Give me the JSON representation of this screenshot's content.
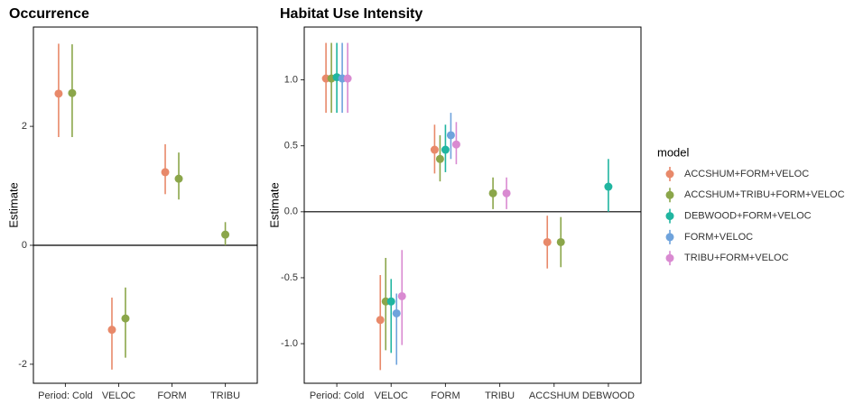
{
  "chart_data": [
    {
      "type": "pointrange",
      "title": "Occurrence",
      "y_label": "Estimate",
      "categories": [
        "Period: Cold",
        "VELOC",
        "FORM",
        "TRIBU"
      ],
      "ylim": [
        -2.32,
        3.67
      ],
      "yticks": [
        -2,
        0,
        2
      ],
      "hline": 0,
      "series": [
        {
          "color": "#E8896A",
          "values": [
            2.55,
            -1.42,
            1.23,
            null
          ],
          "lower": [
            1.82,
            -2.09,
            0.86,
            null
          ],
          "upper": [
            3.39,
            -0.88,
            1.7,
            null
          ]
        },
        {
          "color": "#8BA64A",
          "values": [
            2.56,
            -1.23,
            1.12,
            0.18
          ],
          "lower": [
            1.82,
            -1.89,
            0.77,
            0.0
          ],
          "upper": [
            3.38,
            -0.71,
            1.56,
            0.39
          ]
        }
      ]
    },
    {
      "type": "pointrange",
      "title": "Habitat Use Intensity",
      "y_label": "Estimate",
      "categories": [
        "Period: Cold",
        "VELOC",
        "FORM",
        "TRIBU",
        "ACCSHUM",
        "DEBWOOD"
      ],
      "ylim": [
        -1.3,
        1.4
      ],
      "yticks": [
        {
          "value": -1,
          "label": "-1.0"
        },
        {
          "value": -0.5,
          "label": "-0.5"
        },
        {
          "value": 0,
          "label": "0.0"
        },
        {
          "value": 0.5,
          "label": "0.5"
        },
        {
          "value": 1,
          "label": "1.0"
        }
      ],
      "hline": 0,
      "legend": "right",
      "legend_title": "model",
      "series": [
        {
          "name": "ACCSHUM+FORM+VELOC",
          "color": "#E8896A",
          "values": [
            1.01,
            -0.82,
            0.47,
            null,
            -0.23,
            null
          ],
          "lower": [
            0.75,
            -1.2,
            0.29,
            null,
            -0.43,
            null
          ],
          "upper": [
            1.28,
            -0.48,
            0.66,
            null,
            -0.03,
            null
          ]
        },
        {
          "name": "ACCSHUM+TRIBU+FORM+VELOC",
          "color": "#8BA64A",
          "values": [
            1.01,
            -0.68,
            0.4,
            0.14,
            -0.23,
            null
          ],
          "lower": [
            0.75,
            -1.05,
            0.23,
            0.02,
            -0.42,
            null
          ],
          "upper": [
            1.28,
            -0.35,
            0.58,
            0.26,
            -0.04,
            null
          ]
        },
        {
          "name": "DEBWOOD+FORM+VELOC",
          "color": "#20B5A0",
          "values": [
            1.02,
            -0.68,
            0.47,
            null,
            null,
            0.19
          ],
          "lower": [
            0.75,
            -1.07,
            0.3,
            null,
            null,
            0.0
          ],
          "upper": [
            1.28,
            -0.51,
            0.66,
            null,
            null,
            0.4
          ]
        },
        {
          "name": "FORM+VELOC",
          "color": "#6FA3DC",
          "values": [
            1.01,
            -0.77,
            0.58,
            null,
            null,
            null
          ],
          "lower": [
            0.75,
            -1.16,
            0.4,
            null,
            null,
            null
          ],
          "upper": [
            1.28,
            -0.62,
            0.75,
            null,
            null,
            null
          ]
        },
        {
          "name": "TRIBU+FORM+VELOC",
          "color": "#D98AD1",
          "values": [
            1.01,
            -0.64,
            0.51,
            0.14,
            null,
            null
          ],
          "lower": [
            0.75,
            -1.01,
            0.36,
            0.02,
            null,
            null
          ],
          "upper": [
            1.28,
            -0.29,
            0.68,
            0.26,
            null,
            null
          ]
        }
      ]
    }
  ]
}
